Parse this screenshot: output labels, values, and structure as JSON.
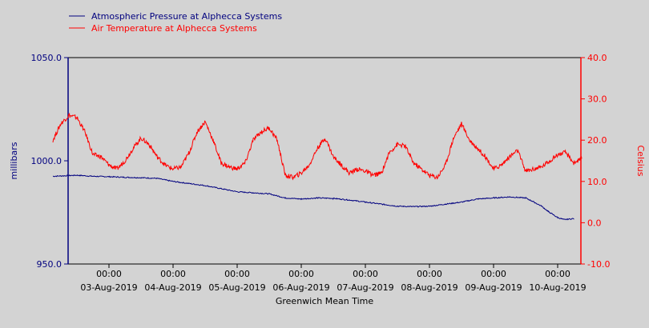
{
  "chart_data": {
    "type": "line",
    "xlabel": "Greenwich Mean Time",
    "x_range": [
      "2019-08-02T03:00",
      "2019-08-10T06:00"
    ],
    "x_ticks": [
      {
        "time": "00:00",
        "date": "03-Aug-2019"
      },
      {
        "time": "00:00",
        "date": "04-Aug-2019"
      },
      {
        "time": "00:00",
        "date": "05-Aug-2019"
      },
      {
        "time": "00:00",
        "date": "06-Aug-2019"
      },
      {
        "time": "00:00",
        "date": "07-Aug-2019"
      },
      {
        "time": "00:00",
        "date": "08-Aug-2019"
      },
      {
        "time": "00:00",
        "date": "09-Aug-2019"
      },
      {
        "time": "00:00",
        "date": "10-Aug-2019"
      }
    ],
    "y_left": {
      "label": "millibars",
      "range": [
        950,
        1050
      ],
      "ticks": [
        "950.0",
        "1000.0",
        "1050.0"
      ],
      "color": "#00007f"
    },
    "y_right": {
      "label": "Celsius",
      "range": [
        -10,
        40
      ],
      "ticks": [
        "-10.0",
        "0.0",
        "10.0",
        "20.0",
        "30.0",
        "40.0"
      ],
      "color": "#ff0000"
    },
    "legend_position": "top-left",
    "series": [
      {
        "name": "Atmospheric Pressure at Alphecca Systems",
        "axis": "left",
        "color": "#00007f",
        "x": [
          -0.875,
          -0.5,
          -0.25,
          0,
          0.25,
          0.5,
          0.75,
          1,
          1.25,
          1.5,
          1.75,
          2,
          2.25,
          2.5,
          2.75,
          3,
          3.25,
          3.5,
          3.75,
          4,
          4.25,
          4.5,
          4.75,
          5,
          5.25,
          5.5,
          5.75,
          6,
          6.25,
          6.5,
          6.6,
          6.75,
          6.85,
          7,
          7.1,
          7.25
        ],
        "y": [
          992.5,
          993,
          992.5,
          992.3,
          992,
          991.8,
          991.5,
          990,
          989,
          988,
          986.5,
          985,
          984.5,
          984,
          982,
          981.5,
          982,
          981.8,
          981,
          980,
          979,
          978,
          977.8,
          978,
          979,
          980,
          981.5,
          982,
          982.5,
          982,
          980.5,
          978,
          975.5,
          972.5,
          971.5,
          972
        ]
      },
      {
        "name": "Air Temperature at Alphecca Systems",
        "axis": "right",
        "color": "#ff0000",
        "x": [
          -0.875,
          -0.75,
          -0.625,
          -0.5,
          -0.375,
          -0.25,
          -0.125,
          0,
          0.125,
          0.25,
          0.375,
          0.5,
          0.625,
          0.75,
          0.875,
          1,
          1.125,
          1.25,
          1.375,
          1.5,
          1.625,
          1.75,
          1.875,
          2,
          2.125,
          2.25,
          2.375,
          2.5,
          2.625,
          2.75,
          2.875,
          3,
          3.125,
          3.25,
          3.375,
          3.5,
          3.625,
          3.75,
          3.875,
          4,
          4.125,
          4.25,
          4.375,
          4.5,
          4.625,
          4.75,
          4.875,
          5,
          5.125,
          5.25,
          5.375,
          5.5,
          5.625,
          5.75,
          5.875,
          6,
          6.125,
          6.25,
          6.375,
          6.5,
          6.625,
          6.75,
          6.875,
          7,
          7.125,
          7.25,
          7.375
        ],
        "y": [
          20,
          24,
          26,
          25.5,
          22,
          16.5,
          16,
          14,
          13,
          15,
          18,
          20.5,
          19,
          16,
          14,
          13,
          13.5,
          17,
          22,
          24.5,
          20,
          14.5,
          13.5,
          13,
          14.5,
          20,
          22,
          23,
          20,
          11.5,
          11,
          12,
          14,
          18,
          20.5,
          16,
          14,
          12,
          13,
          12.5,
          11.5,
          12,
          17,
          19,
          18.5,
          14.5,
          13,
          11.5,
          11,
          14,
          20.5,
          24,
          20,
          18,
          16,
          13,
          14,
          16,
          17.5,
          12.5,
          13,
          13.5,
          15,
          16.5,
          17,
          14.5,
          15.5
        ]
      }
    ]
  }
}
